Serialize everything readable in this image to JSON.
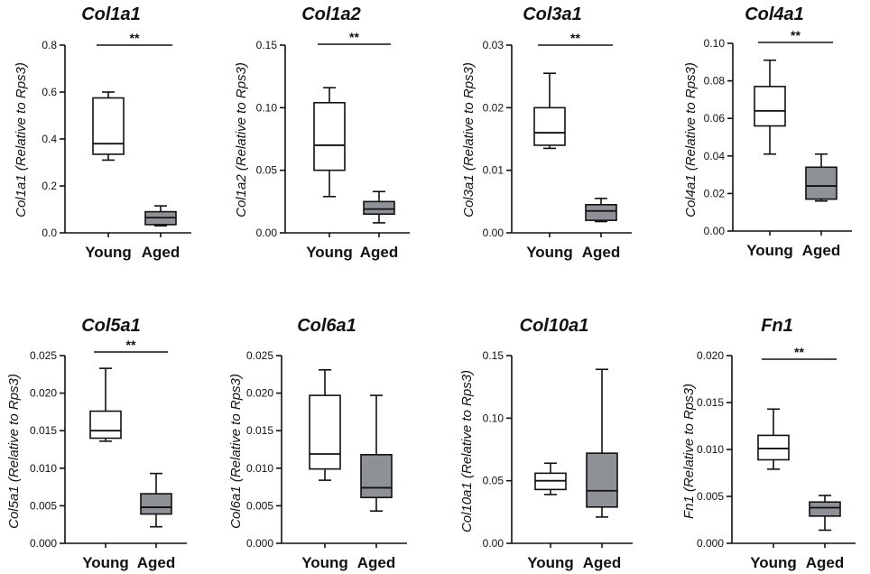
{
  "colors": {
    "young_fill": "#ffffff",
    "aged_fill": "#8e9196",
    "stroke": "#111111"
  },
  "chart_data": [
    {
      "type": "box",
      "title": "Col1a1",
      "ylabel": "Col1a1 (Relative to Rps3)",
      "ylim": [
        0,
        0.8
      ],
      "ticks": [
        0,
        0.2,
        0.4,
        0.6,
        0.8
      ],
      "tick_labels": [
        "0.0",
        "0.2",
        "0.4",
        "0.6",
        "0.8"
      ],
      "categories": [
        "Young",
        "Aged"
      ],
      "boxes": [
        {
          "name": "Young",
          "min": 0.31,
          "q1": 0.335,
          "median": 0.38,
          "q3": 0.575,
          "max": 0.6
        },
        {
          "name": "Aged",
          "min": 0.03,
          "q1": 0.035,
          "median": 0.065,
          "q3": 0.09,
          "max": 0.115
        }
      ],
      "significance": "**"
    },
    {
      "type": "box",
      "title": "Col1a2",
      "ylabel": "Col1a2 (Relative to Rps3)",
      "ylim": [
        0,
        0.15
      ],
      "ticks": [
        0,
        0.05,
        0.1,
        0.15
      ],
      "tick_labels": [
        "0.00",
        "0.05",
        "0.10",
        "0.15"
      ],
      "categories": [
        "Young",
        "Aged"
      ],
      "boxes": [
        {
          "name": "Young",
          "min": 0.029,
          "q1": 0.05,
          "median": 0.07,
          "q3": 0.104,
          "max": 0.116
        },
        {
          "name": "Aged",
          "min": 0.008,
          "q1": 0.015,
          "median": 0.019,
          "q3": 0.025,
          "max": 0.033
        }
      ],
      "significance": "**"
    },
    {
      "type": "box",
      "title": "Col3a1",
      "ylabel": "Col3a1 (Relative to Rps3)",
      "ylim": [
        0,
        0.03
      ],
      "ticks": [
        0,
        0.01,
        0.02,
        0.03
      ],
      "tick_labels": [
        "0.00",
        "0.01",
        "0.02",
        "0.03"
      ],
      "categories": [
        "Young",
        "Aged"
      ],
      "boxes": [
        {
          "name": "Young",
          "min": 0.0135,
          "q1": 0.014,
          "median": 0.016,
          "q3": 0.02,
          "max": 0.0255
        },
        {
          "name": "Aged",
          "min": 0.0018,
          "q1": 0.002,
          "median": 0.0035,
          "q3": 0.0045,
          "max": 0.0055
        }
      ],
      "significance": "**"
    },
    {
      "type": "box",
      "title": "Col4a1",
      "ylabel": "Col4a1 (Relative to Rps3)",
      "ylim": [
        0,
        0.1
      ],
      "ticks": [
        0,
        0.02,
        0.04,
        0.06,
        0.08,
        0.1
      ],
      "tick_labels": [
        "0.00",
        "0.02",
        "0.04",
        "0.06",
        "0.08",
        "0.10"
      ],
      "categories": [
        "Young",
        "Aged"
      ],
      "boxes": [
        {
          "name": "Young",
          "min": 0.041,
          "q1": 0.056,
          "median": 0.064,
          "q3": 0.077,
          "max": 0.091
        },
        {
          "name": "Aged",
          "min": 0.016,
          "q1": 0.017,
          "median": 0.024,
          "q3": 0.034,
          "max": 0.041
        }
      ],
      "significance": "**"
    },
    {
      "type": "box",
      "title": "Col5a1",
      "ylabel": "Col5a1 (Relative to Rps3)",
      "ylim": [
        0,
        0.025
      ],
      "ticks": [
        0,
        0.005,
        0.01,
        0.015,
        0.02,
        0.025
      ],
      "tick_labels": [
        "0.000",
        "0.005",
        "0.010",
        "0.015",
        "0.020",
        "0.025"
      ],
      "categories": [
        "Young",
        "Aged"
      ],
      "boxes": [
        {
          "name": "Young",
          "min": 0.0136,
          "q1": 0.014,
          "median": 0.015,
          "q3": 0.0176,
          "max": 0.0233
        },
        {
          "name": "Aged",
          "min": 0.0022,
          "q1": 0.0039,
          "median": 0.0048,
          "q3": 0.0066,
          "max": 0.0093
        }
      ],
      "significance": "**"
    },
    {
      "type": "box",
      "title": "Col6a1",
      "ylabel": "Col6a1 (Relative to Rps3)",
      "ylim": [
        0,
        0.025
      ],
      "ticks": [
        0,
        0.005,
        0.01,
        0.015,
        0.02,
        0.025
      ],
      "tick_labels": [
        "0.000",
        "0.005",
        "0.010",
        "0.015",
        "0.020",
        "0.025"
      ],
      "categories": [
        "Young",
        "Aged"
      ],
      "boxes": [
        {
          "name": "Young",
          "min": 0.0084,
          "q1": 0.0099,
          "median": 0.0119,
          "q3": 0.0197,
          "max": 0.0231
        },
        {
          "name": "Aged",
          "min": 0.0043,
          "q1": 0.0061,
          "median": 0.0074,
          "q3": 0.0118,
          "max": 0.0197
        }
      ],
      "significance": ""
    },
    {
      "type": "box",
      "title": "Col10a1",
      "ylabel": "Col10a1 (Relative to Rps3)",
      "ylim": [
        0,
        0.15
      ],
      "ticks": [
        0,
        0.05,
        0.1,
        0.15
      ],
      "tick_labels": [
        "0.00",
        "0.05",
        "0.10",
        "0.15"
      ],
      "categories": [
        "Young",
        "Aged"
      ],
      "boxes": [
        {
          "name": "Young",
          "min": 0.039,
          "q1": 0.043,
          "median": 0.05,
          "q3": 0.056,
          "max": 0.064
        },
        {
          "name": "Aged",
          "min": 0.021,
          "q1": 0.029,
          "median": 0.042,
          "q3": 0.072,
          "max": 0.139
        }
      ],
      "significance": ""
    },
    {
      "type": "box",
      "title": "Fn1",
      "ylabel": "Fn1 (Relative to Rps3)",
      "ylim": [
        0,
        0.02
      ],
      "ticks": [
        0,
        0.005,
        0.01,
        0.015,
        0.02
      ],
      "tick_labels": [
        "0.000",
        "0.005",
        "0.010",
        "0.015",
        "0.020"
      ],
      "categories": [
        "Young",
        "Aged"
      ],
      "boxes": [
        {
          "name": "Young",
          "min": 0.0079,
          "q1": 0.0089,
          "median": 0.0101,
          "q3": 0.0115,
          "max": 0.0143
        },
        {
          "name": "Aged",
          "min": 0.0014,
          "q1": 0.0029,
          "median": 0.0038,
          "q3": 0.0044,
          "max": 0.0051
        }
      ],
      "significance": "**"
    }
  ]
}
